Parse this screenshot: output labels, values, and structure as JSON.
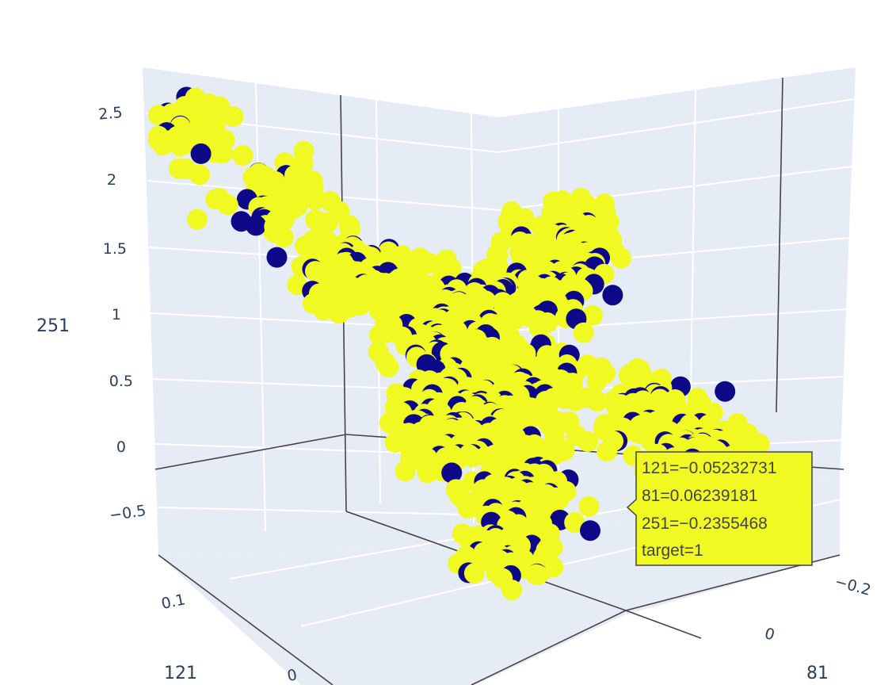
{
  "chart_data": {
    "type": "scatter",
    "subtype": "scatter3d",
    "axes": {
      "x": {
        "title": "121",
        "tick_labels": [
          "0.1",
          "0"
        ]
      },
      "y": {
        "title": "81",
        "tick_labels": [
          "−0.2",
          "0"
        ]
      },
      "z": {
        "title": "251",
        "tick_labels": [
          "2.5",
          "2",
          "1.5",
          "1",
          "0.5",
          "0",
          "−0.5"
        ],
        "range": [
          -0.8,
          2.8
        ]
      }
    },
    "color_key": "target",
    "colors": {
      "target_0": "#0d0887",
      "target_1": "#f0f921"
    },
    "background_color": "#e5ecf6",
    "grid": true,
    "hover": {
      "lines": [
        "121=−0.05232731",
        "81=0.06239181",
        "251=−0.2355468",
        "target=1"
      ],
      "x": -0.05232731,
      "y": 0.06239181,
      "z": -0.2355468,
      "target": 1
    }
  }
}
